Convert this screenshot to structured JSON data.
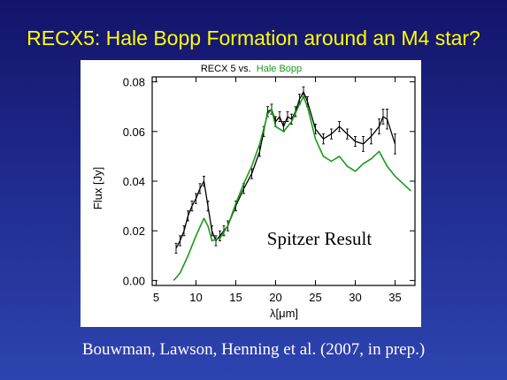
{
  "slide": {
    "title": "RECX5: Hale Bopp Formation around an M4 star?",
    "footer": "Bouwman, Lawson, Henning et al. (2007, in prep.)"
  },
  "colors": {
    "background_top": "#13136a",
    "background_bottom": "#2d44b0",
    "title_color": "#ffff00",
    "recx5_color": "#000000",
    "halebopp_color": "#1a9a1a"
  },
  "chart_data": {
    "type": "line",
    "title_parts": [
      "RECX 5 vs.",
      "Hale Bopp"
    ],
    "xlabel": "λ[μm]",
    "ylabel": "Flux [Jy]",
    "xlim": [
      4.5,
      37.5
    ],
    "ylim": [
      -0.002,
      0.082
    ],
    "xticks": [
      5,
      10,
      15,
      20,
      25,
      30,
      35
    ],
    "yticks": [
      0.0,
      0.02,
      0.04,
      0.06,
      0.08
    ],
    "ytick_labels": [
      "0.00",
      "0.02",
      "0.04",
      "0.06",
      "0.08"
    ],
    "annotation": "Spitzer Result",
    "grid": false,
    "series": [
      {
        "name": "RECX 5",
        "color": "#000000",
        "error_bars": true,
        "x": [
          7.5,
          8.0,
          8.5,
          9.0,
          9.5,
          10.0,
          10.5,
          11.0,
          11.5,
          12.0,
          12.5,
          13.0,
          13.5,
          14.0,
          15.0,
          16.0,
          17.0,
          18.0,
          18.5,
          19.0,
          19.5,
          20.0,
          20.5,
          21.0,
          21.5,
          22.0,
          22.5,
          23.0,
          23.5,
          24.0,
          25.0,
          26.0,
          27.0,
          28.0,
          29.0,
          30.0,
          31.0,
          32.0,
          33.0,
          33.5,
          34.0,
          35.0
        ],
        "y": [
          0.013,
          0.016,
          0.02,
          0.026,
          0.03,
          0.033,
          0.037,
          0.04,
          0.03,
          0.02,
          0.016,
          0.018,
          0.02,
          0.022,
          0.03,
          0.037,
          0.043,
          0.052,
          0.06,
          0.068,
          0.069,
          0.064,
          0.066,
          0.062,
          0.066,
          0.065,
          0.068,
          0.073,
          0.076,
          0.072,
          0.061,
          0.057,
          0.059,
          0.062,
          0.059,
          0.056,
          0.055,
          0.058,
          0.062,
          0.066,
          0.065,
          0.055
        ],
        "err": [
          0.002,
          0.002,
          0.002,
          0.002,
          0.002,
          0.002,
          0.002,
          0.002,
          0.002,
          0.002,
          0.002,
          0.002,
          0.002,
          0.002,
          0.002,
          0.002,
          0.002,
          0.002,
          0.002,
          0.002,
          0.002,
          0.002,
          0.002,
          0.002,
          0.002,
          0.002,
          0.002,
          0.002,
          0.002,
          0.002,
          0.002,
          0.002,
          0.002,
          0.002,
          0.002,
          0.002,
          0.003,
          0.003,
          0.003,
          0.003,
          0.004,
          0.004
        ]
      },
      {
        "name": "Hale Bopp",
        "color": "#1a9a1a",
        "error_bars": false,
        "x": [
          7.2,
          8.0,
          9.0,
          10.0,
          11.0,
          11.5,
          12.0,
          13.0,
          14.0,
          15.0,
          16.0,
          17.0,
          18.0,
          19.0,
          19.5,
          20.0,
          21.0,
          22.0,
          23.0,
          23.5,
          24.0,
          25.0,
          26.0,
          27.0,
          28.0,
          29.0,
          30.0,
          31.0,
          32.0,
          33.0,
          34.0,
          35.0,
          36.0,
          37.0
        ],
        "y": [
          0.0,
          0.003,
          0.01,
          0.018,
          0.025,
          0.022,
          0.016,
          0.017,
          0.022,
          0.031,
          0.039,
          0.046,
          0.055,
          0.067,
          0.069,
          0.062,
          0.06,
          0.064,
          0.071,
          0.074,
          0.07,
          0.057,
          0.05,
          0.048,
          0.05,
          0.046,
          0.044,
          0.047,
          0.049,
          0.052,
          0.046,
          0.042,
          0.039,
          0.036
        ]
      }
    ]
  }
}
